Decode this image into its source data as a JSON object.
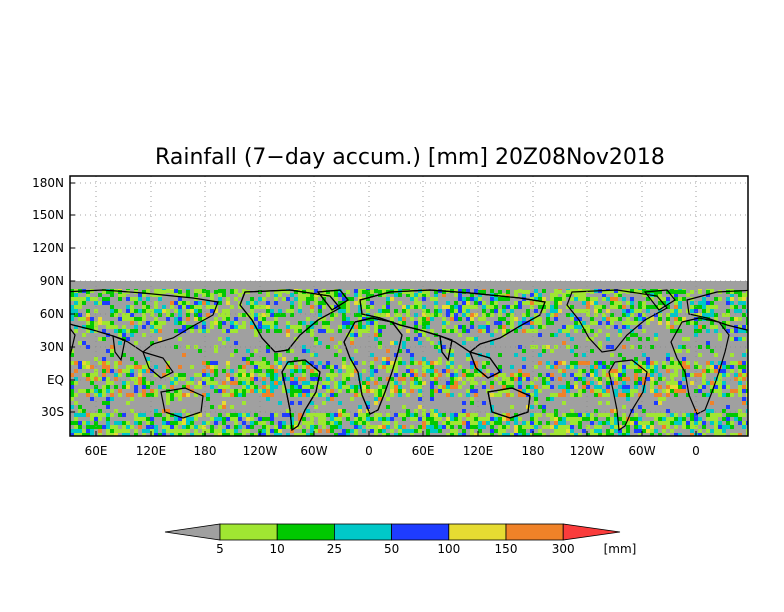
{
  "title": "Rainfall (7−day accum.) [mm] 20Z08Nov2018",
  "lat_labels": [
    "180N",
    "150N",
    "120N",
    "90N",
    "60N",
    "30N",
    "EQ",
    "30S"
  ],
  "lon_labels": [
    "60E",
    "120E",
    "180",
    "120W",
    "60W",
    "0",
    "60E",
    "120E",
    "180",
    "120W",
    "60W",
    "0"
  ],
  "colorbar": {
    "ticks": [
      "5",
      "10",
      "25",
      "50",
      "100",
      "150",
      "300"
    ],
    "unit": "[mm]",
    "colors": [
      "#a0a0a0",
      "#a0e632",
      "#00c800",
      "#00c8c8",
      "#1e3cff",
      "#e6dc32",
      "#f08228",
      "#fa3c3c"
    ]
  },
  "map": {
    "no_data_color": "#a0a0a0",
    "grid": "dotted"
  }
}
